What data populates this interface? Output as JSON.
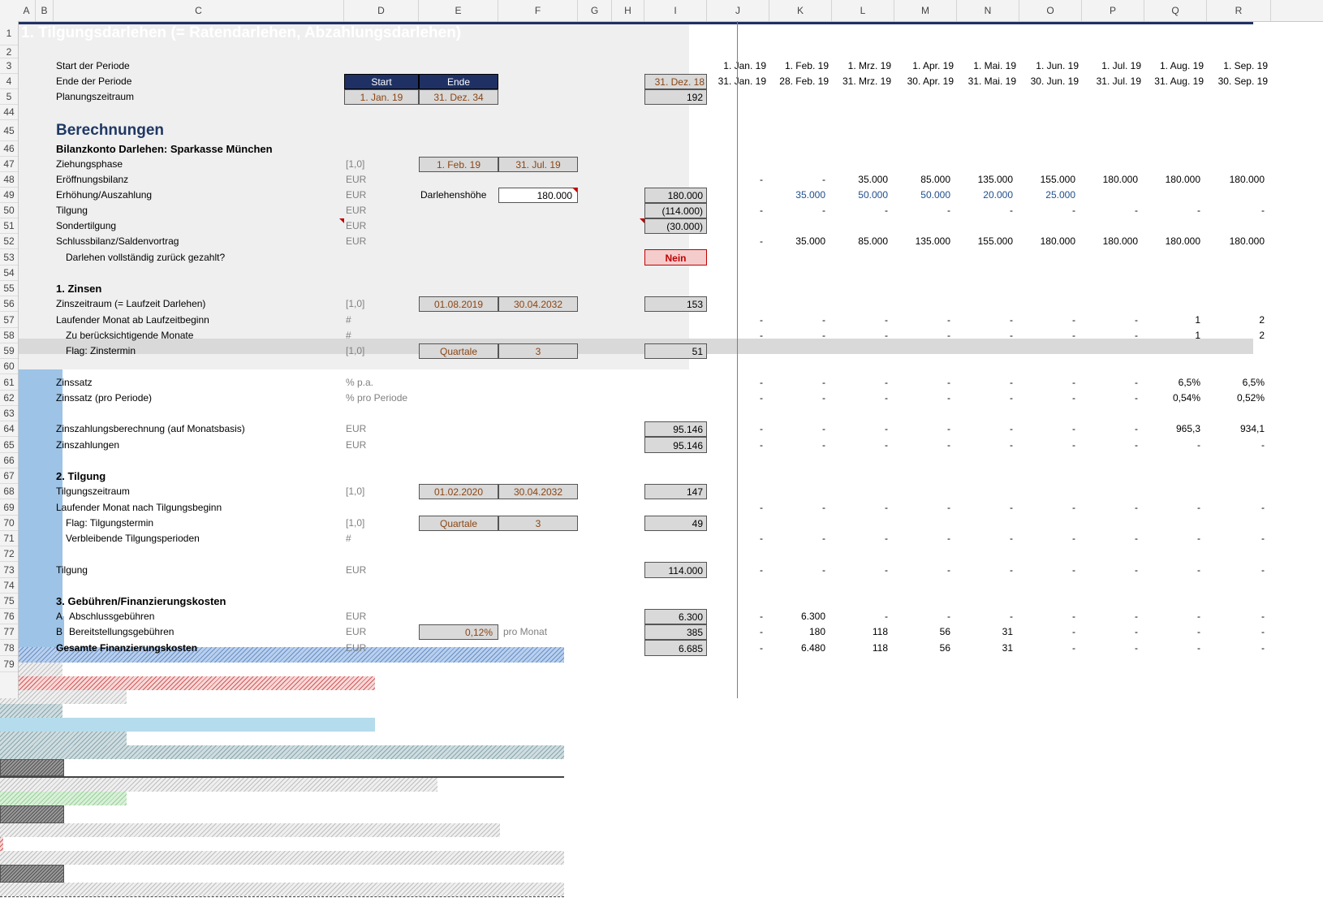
{
  "colors": {
    "title_bg": "#1f3164",
    "date_header_bg": "#9dc3e6",
    "start_end_bg": "#1f3164",
    "nein_bg": "#f4cccc",
    "nein_text": "#c00000",
    "label_brown": "#8b4513",
    "section_blue": "#1f3864"
  },
  "columns": [
    "A",
    "B",
    "C",
    "D",
    "E",
    "F",
    "G",
    "H",
    "I",
    "J",
    "K",
    "L",
    "M",
    "N",
    "O",
    "P",
    "Q",
    "R"
  ],
  "row_numbers": [
    "1",
    "2",
    "3",
    "4",
    "5",
    "44",
    "45",
    "46",
    "47",
    "48",
    "49",
    "50",
    "51",
    "52",
    "53",
    "54",
    "55",
    "56",
    "57",
    "58",
    "59",
    "60",
    "61",
    "62",
    "63",
    "64",
    "65",
    "66",
    "67",
    "68",
    "69",
    "70",
    "71",
    "72",
    "73",
    "74",
    "75",
    "76",
    "77",
    "78",
    "79"
  ],
  "title": "1. Tilgungsdarlehen (= Ratendarlehen, Abzahlungsdarlehen)",
  "header": {
    "start_label": "Start der Periode",
    "end_label": "Ende der Periode",
    "plan_label": "Planungszeitraum",
    "start_btn": "Start",
    "end_btn": "Ende",
    "plan_start": "1. Jan. 19",
    "plan_end": "31. Dez. 34",
    "i_end": "31. Dez. 18",
    "i_plan": "192",
    "period_starts": [
      "1. Jan. 19",
      "1. Feb. 19",
      "1. Mrz. 19",
      "1. Apr. 19",
      "1. Mai. 19",
      "1. Jun. 19",
      "1. Jul. 19",
      "1. Aug. 19",
      "1. Sep. 19"
    ],
    "period_ends": [
      "31. Jan. 19",
      "28. Feb. 19",
      "31. Mrz. 19",
      "30. Apr. 19",
      "31. Mai. 19",
      "30. Jun. 19",
      "31. Jul. 19",
      "31. Aug. 19",
      "30. Sep. 19"
    ]
  },
  "calc": {
    "title": "Berechnungen",
    "account_title": "Bilanzkonto Darlehen: Sparkasse München",
    "r47": {
      "label": "Ziehungsphase",
      "unit": "[1,0]",
      "e": "1. Feb. 19",
      "f": "31. Jul. 19"
    },
    "r48": {
      "label": "Eröffnungsbilanz",
      "unit": "EUR",
      "vals": [
        "-",
        "-",
        "35.000",
        "85.000",
        "135.000",
        "155.000",
        "180.000",
        "180.000",
        "180.000"
      ]
    },
    "r49": {
      "label": "Erhöhung/Auszahlung",
      "unit": "EUR",
      "e_label": "Darlehenshöhe",
      "f": "180.000",
      "i": "180.000",
      "vals": [
        "",
        "35.000",
        "50.000",
        "50.000",
        "20.000",
        "25.000",
        "",
        "",
        ""
      ]
    },
    "r50": {
      "label": "Tilgung",
      "unit": "EUR",
      "i": "(114.000)",
      "vals": [
        "-",
        "-",
        "-",
        "-",
        "-",
        "-",
        "-",
        "-",
        "-"
      ]
    },
    "r51": {
      "label": "Sondertilgung",
      "unit": "EUR",
      "i": "(30.000)"
    },
    "r52": {
      "label": "Schlussbilanz/Saldenvortrag",
      "unit": "EUR",
      "vals": [
        "-",
        "35.000",
        "85.000",
        "135.000",
        "155.000",
        "180.000",
        "180.000",
        "180.000",
        "180.000"
      ]
    },
    "r53": {
      "label": "Darlehen vollständig zurück gezahlt?",
      "i": "Nein"
    }
  },
  "zinsen": {
    "title": "1. Zinsen",
    "r56": {
      "label": "Zinszeitraum (= Laufzeit Darlehen)",
      "unit": "[1,0]",
      "e": "01.08.2019",
      "f": "30.04.2032",
      "i": "153"
    },
    "r57": {
      "label": "Laufender Monat ab Laufzeitbeginn",
      "unit": "#",
      "vals": [
        "-",
        "-",
        "-",
        "-",
        "-",
        "-",
        "-",
        "1",
        "2"
      ]
    },
    "r58": {
      "label": "Zu berücksichtigende Monate",
      "unit": "#",
      "vals": [
        "-",
        "-",
        "-",
        "-",
        "-",
        "-",
        "-",
        "1",
        "2"
      ]
    },
    "r59": {
      "label": "Flag: Zinstermin",
      "unit": "[1,0]",
      "e": "Quartale",
      "f": "3",
      "i": "51"
    },
    "r61": {
      "label": "Zinssatz",
      "unit": "% p.a.",
      "vals": [
        "-",
        "-",
        "-",
        "-",
        "-",
        "-",
        "-",
        "6,5%",
        "6,5%"
      ]
    },
    "r62": {
      "label": "Zinssatz (pro Periode)",
      "unit": "% pro Periode",
      "vals": [
        "-",
        "-",
        "-",
        "-",
        "-",
        "-",
        "-",
        "0,54%",
        "0,52%"
      ]
    },
    "r64": {
      "label": "Zinszahlungsberechnung (auf Monatsbasis)",
      "unit": "EUR",
      "i": "95.146",
      "vals": [
        "-",
        "-",
        "-",
        "-",
        "-",
        "-",
        "-",
        "965,3",
        "934,1"
      ]
    },
    "r65": {
      "label": "Zinszahlungen",
      "unit": "EUR",
      "i": "95.146",
      "vals": [
        "-",
        "-",
        "-",
        "-",
        "-",
        "-",
        "-",
        "-",
        "-"
      ]
    }
  },
  "tilgung": {
    "title": "2. Tilgung",
    "r68": {
      "label": "Tilgungszeitraum",
      "unit": "[1,0]",
      "e": "01.02.2020",
      "f": "30.04.2032",
      "i": "147"
    },
    "r69": {
      "label": "Laufender Monat nach Tilgungsbeginn",
      "vals": [
        "-",
        "-",
        "-",
        "-",
        "-",
        "-",
        "-",
        "-",
        "-"
      ]
    },
    "r70": {
      "label": "Flag: Tilgungstermin",
      "unit": "[1,0]",
      "e": "Quartale",
      "f": "3",
      "i": "49"
    },
    "r71": {
      "label": "Verbleibende Tilgungsperioden",
      "unit": "#",
      "vals": [
        "-",
        "-",
        "-",
        "-",
        "-",
        "-",
        "-",
        "-",
        "-"
      ]
    },
    "r73": {
      "label": "Tilgung",
      "unit": "EUR",
      "i": "114.000",
      "vals": [
        "-",
        "-",
        "-",
        "-",
        "-",
        "-",
        "-",
        "-",
        "-"
      ]
    }
  },
  "gebuehren": {
    "title": "3. Gebühren/Finanzierungskosten",
    "r76": {
      "prefix": "A",
      "label": "Abschlussgebühren",
      "unit": "EUR",
      "i": "6.300",
      "vals": [
        "-",
        "6.300",
        "-",
        "-",
        "-",
        "-",
        "-",
        "-",
        "-"
      ]
    },
    "r77": {
      "prefix": "B",
      "label": "Bereitstellungsgebühren",
      "unit": "EUR",
      "e": "0,12%",
      "f_label": "pro Monat",
      "i": "385",
      "vals": [
        "-",
        "180",
        "118",
        "56",
        "31",
        "-",
        "-",
        "-",
        "-"
      ]
    },
    "r78": {
      "label": "Gesamte Finanzierungskosten",
      "unit": "EUR",
      "i": "6.685",
      "vals": [
        "-",
        "6.480",
        "118",
        "56",
        "31",
        "-",
        "-",
        "-",
        "-"
      ]
    }
  }
}
